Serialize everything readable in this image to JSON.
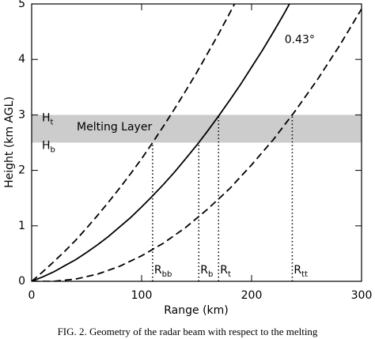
{
  "chart_data": {
    "type": "line",
    "xlabel": "Range (km)",
    "ylabel": "Height (km AGL)",
    "caption": "FIG. 2. Geometry of the radar beam with respect to the melting",
    "xlim": [
      0,
      300
    ],
    "ylim": [
      0,
      5
    ],
    "xticks": [
      0,
      100,
      200,
      300
    ],
    "yticks": [
      0,
      1,
      2,
      3,
      4,
      5
    ],
    "series": [
      {
        "color": "#000000",
        "line_style": "dashed",
        "x": [
          0,
          10,
          20,
          30,
          40,
          50,
          60,
          70,
          80,
          90,
          100,
          110,
          120,
          130,
          140,
          150,
          160,
          170,
          180,
          185
        ],
        "values": [
          0,
          0.17,
          0.35,
          0.54,
          0.74,
          0.96,
          1.19,
          1.43,
          1.68,
          1.94,
          2.21,
          2.5,
          2.8,
          3.11,
          3.43,
          3.76,
          4.11,
          4.46,
          4.83,
          5.02
        ]
      },
      {
        "color": "#000000",
        "line_style": "solid",
        "x": [
          0,
          10,
          20,
          30,
          40,
          50,
          60,
          70,
          80,
          90,
          100,
          110,
          120,
          130,
          140,
          150,
          160,
          170,
          180,
          190,
          200,
          210,
          220,
          230,
          235
        ],
        "values": [
          0,
          0.08,
          0.17,
          0.28,
          0.39,
          0.52,
          0.66,
          0.81,
          0.98,
          1.15,
          1.34,
          1.54,
          1.75,
          1.97,
          2.21,
          2.45,
          2.71,
          2.98,
          3.26,
          3.55,
          3.86,
          4.17,
          4.5,
          4.84,
          5.02
        ]
      },
      {
        "color": "#000000",
        "line_style": "dashed",
        "x": [
          0,
          20,
          40,
          60,
          80,
          100,
          120,
          140,
          160,
          180,
          200,
          220,
          240,
          260,
          280,
          300
        ],
        "values": [
          0,
          0,
          0.04,
          0.13,
          0.27,
          0.46,
          0.69,
          0.97,
          1.3,
          1.67,
          2.1,
          2.56,
          3.08,
          3.64,
          4.25,
          4.91
        ]
      }
    ],
    "beam_label": {
      "text": "0.43°",
      "x": 230,
      "y": 4.35
    },
    "melting_layer": {
      "label": "Melting Layer",
      "bottom": 2.5,
      "top": 3.0,
      "color": "#cccccc",
      "top_label": {
        "main": "H",
        "sub": "t"
      },
      "bottom_label": {
        "main": "H",
        "sub": "b"
      }
    },
    "range_markers": [
      {
        "main": "R",
        "sub": "bb",
        "x": 110,
        "height": 2.5
      },
      {
        "main": "R",
        "sub": "b",
        "x": 152,
        "height": 2.5
      },
      {
        "main": "R",
        "sub": "t",
        "x": 170,
        "height": 3.0
      },
      {
        "main": "R",
        "sub": "tt",
        "x": 237,
        "height": 3.0
      }
    ]
  }
}
